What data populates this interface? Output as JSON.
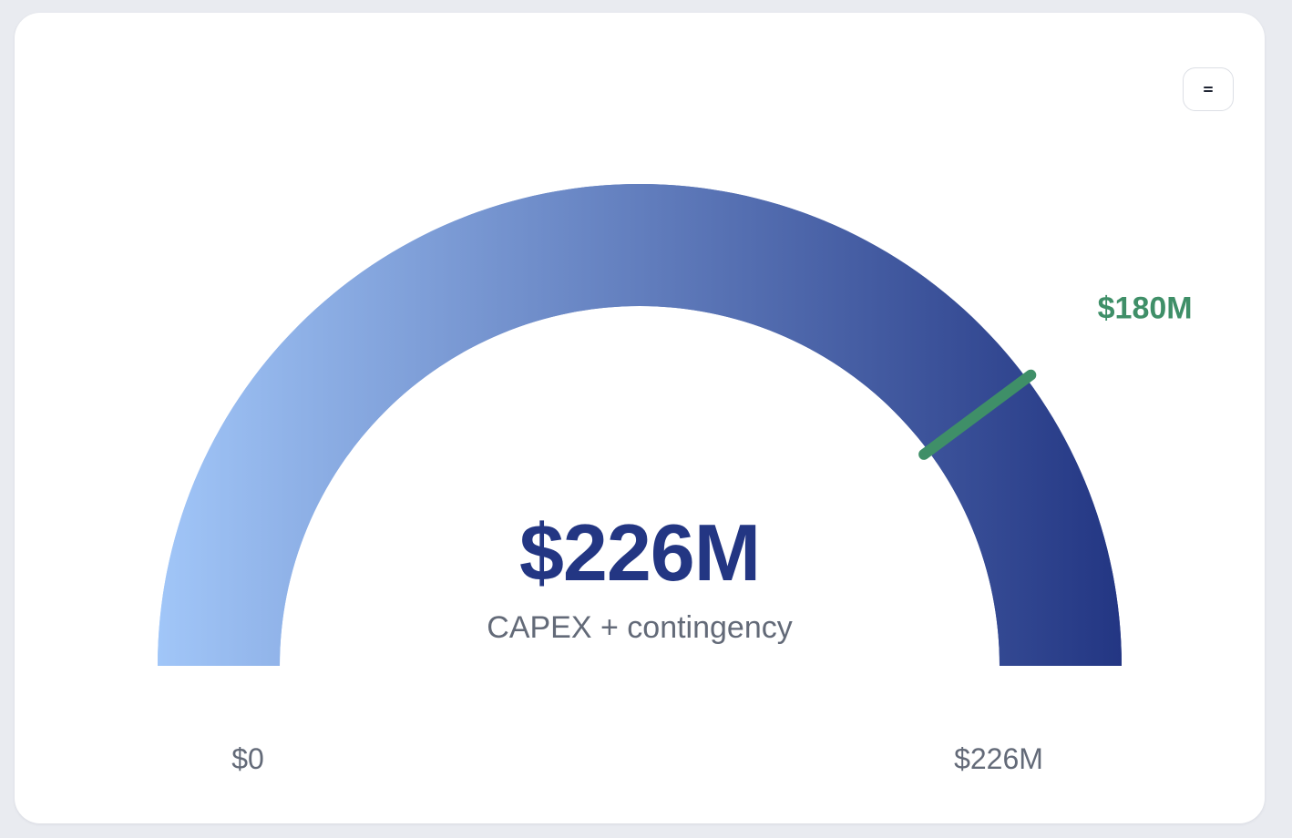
{
  "menu": {
    "icon": "menu-icon"
  },
  "chart_data": {
    "type": "gauge",
    "value": 226,
    "value_label": "$226M",
    "subtitle": "CAPEX + contingency",
    "min": 0,
    "max": 226,
    "min_label": "$0",
    "max_label": "$226M",
    "target": 180,
    "target_label": "$180M",
    "colors": {
      "gradient_start": "#a1c6f8",
      "gradient_end": "#233683",
      "target": "#3f8f68",
      "value_text": "#233683",
      "label_text": "#636a78"
    }
  }
}
